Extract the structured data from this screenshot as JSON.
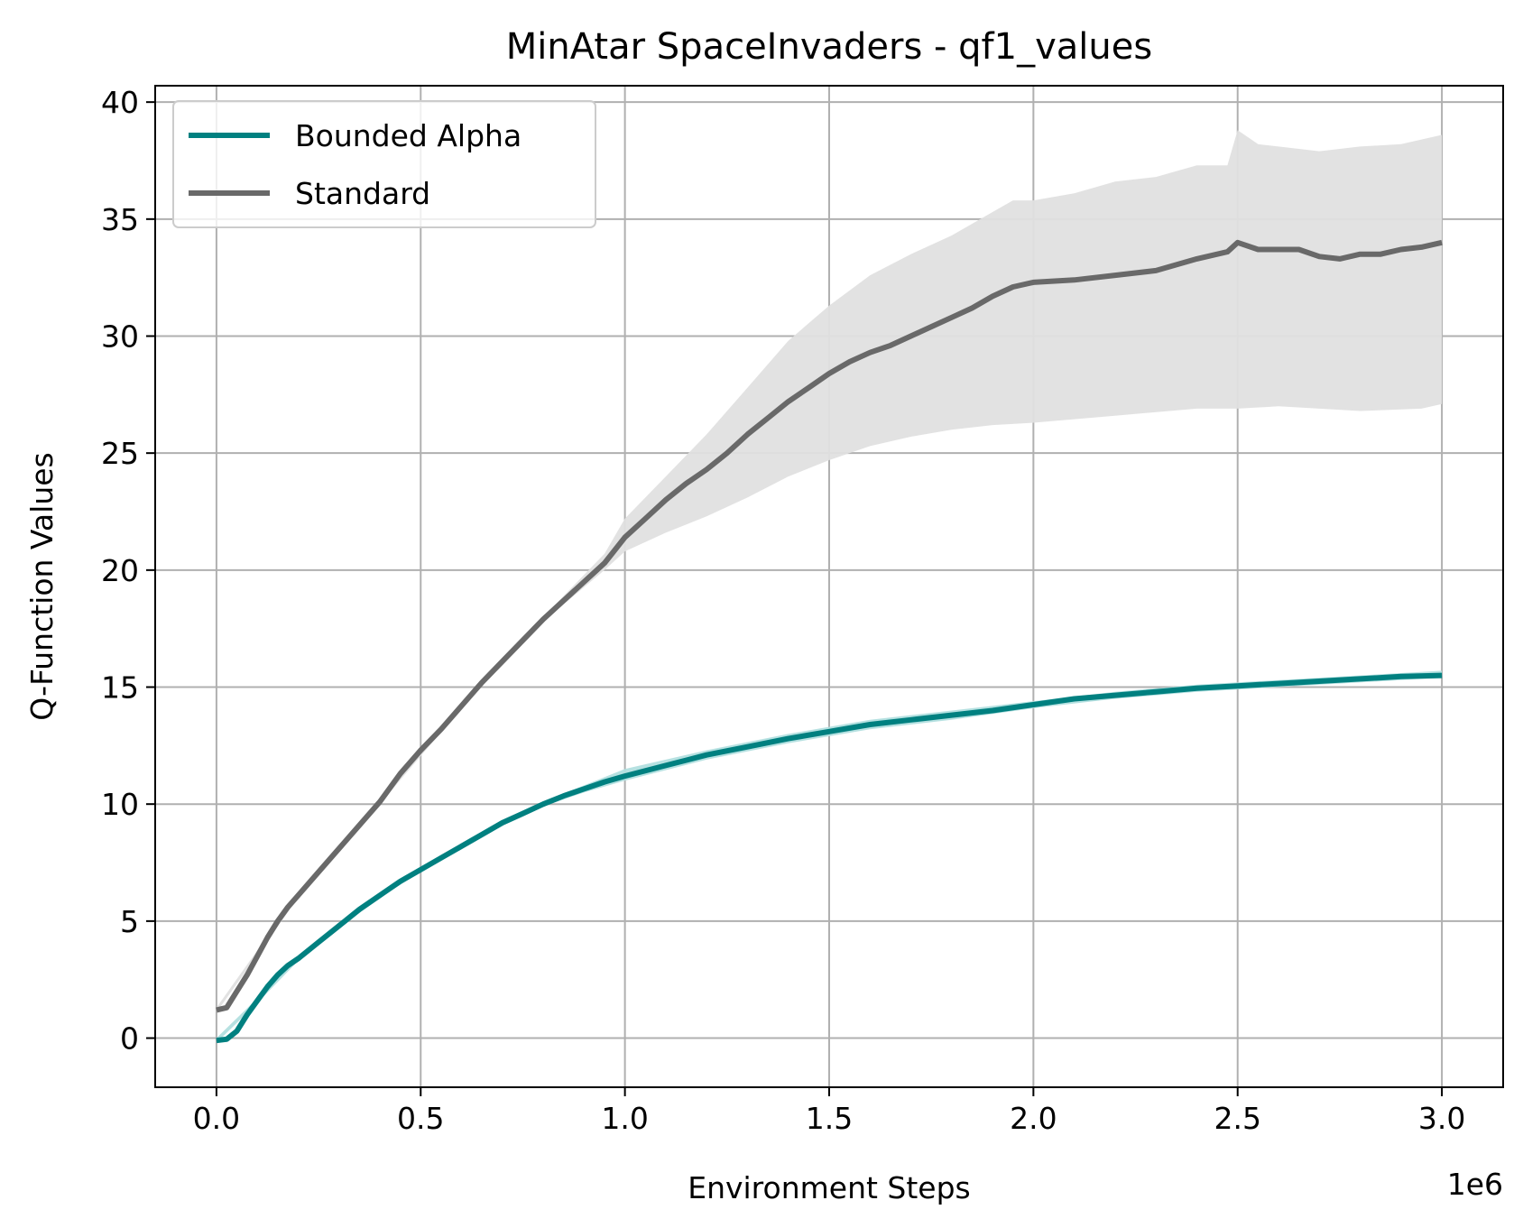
{
  "chart_data": {
    "type": "line",
    "title": "MinAtar SpaceInvaders - qf1_values",
    "xlabel": "Environment Steps",
    "ylabel": "Q-Function Values",
    "x_offset_label": "1e6",
    "xlim": [
      -150000,
      3150000
    ],
    "ylim": [
      -2.1,
      40.7
    ],
    "xticks": [
      0,
      500000,
      1000000,
      1500000,
      2000000,
      2500000,
      3000000
    ],
    "xtick_labels": [
      "0.0",
      "0.5",
      "1.0",
      "1.5",
      "2.0",
      "2.5",
      "3.0"
    ],
    "yticks": [
      0,
      5,
      10,
      15,
      20,
      25,
      30,
      35,
      40
    ],
    "ytick_labels": [
      "0",
      "5",
      "10",
      "15",
      "20",
      "25",
      "30",
      "35",
      "40"
    ],
    "grid": true,
    "legend_position": "top-left",
    "series": [
      {
        "name": "Bounded Alpha",
        "color": "#008080",
        "band_color": "#b2dfdf",
        "points": [
          [
            0,
            -0.1
          ],
          [
            25000,
            -0.05
          ],
          [
            50000,
            0.3
          ],
          [
            75000,
            1.0
          ],
          [
            100000,
            1.6
          ],
          [
            125000,
            2.2
          ],
          [
            150000,
            2.7
          ],
          [
            175000,
            3.1
          ],
          [
            200000,
            3.4
          ],
          [
            250000,
            4.1
          ],
          [
            300000,
            4.8
          ],
          [
            350000,
            5.5
          ],
          [
            400000,
            6.1
          ],
          [
            450000,
            6.7
          ],
          [
            500000,
            7.2
          ],
          [
            550000,
            7.7
          ],
          [
            600000,
            8.2
          ],
          [
            650000,
            8.7
          ],
          [
            700000,
            9.2
          ],
          [
            750000,
            9.6
          ],
          [
            800000,
            10.0
          ],
          [
            850000,
            10.35
          ],
          [
            900000,
            10.65
          ],
          [
            950000,
            10.95
          ],
          [
            1000000,
            11.2
          ],
          [
            1100000,
            11.65
          ],
          [
            1200000,
            12.1
          ],
          [
            1300000,
            12.45
          ],
          [
            1400000,
            12.8
          ],
          [
            1500000,
            13.1
          ],
          [
            1600000,
            13.4
          ],
          [
            1700000,
            13.6
          ],
          [
            1800000,
            13.8
          ],
          [
            1900000,
            14.0
          ],
          [
            2000000,
            14.25
          ],
          [
            2100000,
            14.5
          ],
          [
            2200000,
            14.65
          ],
          [
            2300000,
            14.8
          ],
          [
            2400000,
            14.95
          ],
          [
            2500000,
            15.05
          ],
          [
            2600000,
            15.15
          ],
          [
            2700000,
            15.25
          ],
          [
            2800000,
            15.35
          ],
          [
            2900000,
            15.45
          ],
          [
            3000000,
            15.5
          ]
        ],
        "band_lower": [
          [
            0,
            -0.2
          ],
          [
            100000,
            1.5
          ],
          [
            200000,
            3.3
          ],
          [
            300000,
            4.7
          ],
          [
            400000,
            6.0
          ],
          [
            500000,
            7.1
          ],
          [
            600000,
            8.1
          ],
          [
            700000,
            9.1
          ],
          [
            800000,
            9.9
          ],
          [
            900000,
            10.5
          ],
          [
            1000000,
            11.0
          ],
          [
            1200000,
            11.9
          ],
          [
            1400000,
            12.6
          ],
          [
            1600000,
            13.2
          ],
          [
            1800000,
            13.6
          ],
          [
            2000000,
            14.1
          ],
          [
            2200000,
            14.5
          ],
          [
            2400000,
            14.8
          ],
          [
            2600000,
            15.0
          ],
          [
            2800000,
            15.2
          ],
          [
            3000000,
            15.4
          ]
        ],
        "band_upper": [
          [
            0,
            0.0
          ],
          [
            100000,
            1.7
          ],
          [
            200000,
            3.5
          ],
          [
            300000,
            4.9
          ],
          [
            400000,
            6.2
          ],
          [
            500000,
            7.3
          ],
          [
            600000,
            8.3
          ],
          [
            700000,
            9.3
          ],
          [
            800000,
            10.1
          ],
          [
            900000,
            10.8
          ],
          [
            1000000,
            11.5
          ],
          [
            1200000,
            12.3
          ],
          [
            1400000,
            13.0
          ],
          [
            1600000,
            13.6
          ],
          [
            1800000,
            14.0
          ],
          [
            2000000,
            14.4
          ],
          [
            2200000,
            14.8
          ],
          [
            2400000,
            15.1
          ],
          [
            2600000,
            15.3
          ],
          [
            2800000,
            15.5
          ],
          [
            3000000,
            15.7
          ]
        ]
      },
      {
        "name": "Standard",
        "color": "#696969",
        "band_color": "#e0e0e0",
        "points": [
          [
            0,
            1.2
          ],
          [
            25000,
            1.3
          ],
          [
            50000,
            2.0
          ],
          [
            75000,
            2.7
          ],
          [
            100000,
            3.5
          ],
          [
            125000,
            4.3
          ],
          [
            150000,
            5.0
          ],
          [
            175000,
            5.6
          ],
          [
            200000,
            6.1
          ],
          [
            250000,
            7.1
          ],
          [
            300000,
            8.1
          ],
          [
            350000,
            9.1
          ],
          [
            400000,
            10.1
          ],
          [
            450000,
            11.3
          ],
          [
            500000,
            12.3
          ],
          [
            550000,
            13.2
          ],
          [
            600000,
            14.2
          ],
          [
            650000,
            15.2
          ],
          [
            700000,
            16.1
          ],
          [
            750000,
            17.0
          ],
          [
            800000,
            17.9
          ],
          [
            850000,
            18.7
          ],
          [
            900000,
            19.5
          ],
          [
            950000,
            20.3
          ],
          [
            1000000,
            21.4
          ],
          [
            1050000,
            22.2
          ],
          [
            1100000,
            23.0
          ],
          [
            1150000,
            23.7
          ],
          [
            1200000,
            24.3
          ],
          [
            1250000,
            25.0
          ],
          [
            1300000,
            25.8
          ],
          [
            1350000,
            26.5
          ],
          [
            1400000,
            27.2
          ],
          [
            1450000,
            27.8
          ],
          [
            1500000,
            28.4
          ],
          [
            1550000,
            28.9
          ],
          [
            1600000,
            29.3
          ],
          [
            1650000,
            29.6
          ],
          [
            1700000,
            30.0
          ],
          [
            1750000,
            30.4
          ],
          [
            1800000,
            30.8
          ],
          [
            1850000,
            31.2
          ],
          [
            1900000,
            31.7
          ],
          [
            1950000,
            32.1
          ],
          [
            2000000,
            32.3
          ],
          [
            2100000,
            32.4
          ],
          [
            2200000,
            32.6
          ],
          [
            2300000,
            32.8
          ],
          [
            2400000,
            33.3
          ],
          [
            2475000,
            33.6
          ],
          [
            2500000,
            34.0
          ],
          [
            2550000,
            33.7
          ],
          [
            2600000,
            33.7
          ],
          [
            2650000,
            33.7
          ],
          [
            2700000,
            33.4
          ],
          [
            2750000,
            33.3
          ],
          [
            2800000,
            33.5
          ],
          [
            2850000,
            33.5
          ],
          [
            2900000,
            33.7
          ],
          [
            2950000,
            33.8
          ],
          [
            3000000,
            34.0
          ]
        ],
        "band_lower": [
          [
            0,
            1.1
          ],
          [
            200000,
            6.0
          ],
          [
            400000,
            10.0
          ],
          [
            600000,
            14.1
          ],
          [
            800000,
            17.8
          ],
          [
            950000,
            20.0
          ],
          [
            1000000,
            20.8
          ],
          [
            1100000,
            21.6
          ],
          [
            1200000,
            22.3
          ],
          [
            1300000,
            23.1
          ],
          [
            1400000,
            24.0
          ],
          [
            1500000,
            24.7
          ],
          [
            1600000,
            25.3
          ],
          [
            1700000,
            25.7
          ],
          [
            1800000,
            26.0
          ],
          [
            1900000,
            26.2
          ],
          [
            2000000,
            26.3
          ],
          [
            2200000,
            26.6
          ],
          [
            2400000,
            26.9
          ],
          [
            2500000,
            26.9
          ],
          [
            2600000,
            27.0
          ],
          [
            2800000,
            26.8
          ],
          [
            2950000,
            26.9
          ],
          [
            3000000,
            27.1
          ]
        ],
        "band_upper": [
          [
            0,
            1.3
          ],
          [
            200000,
            6.2
          ],
          [
            400000,
            10.2
          ],
          [
            600000,
            14.3
          ],
          [
            800000,
            18.0
          ],
          [
            950000,
            20.7
          ],
          [
            1000000,
            22.2
          ],
          [
            1100000,
            24.0
          ],
          [
            1200000,
            25.8
          ],
          [
            1300000,
            27.8
          ],
          [
            1400000,
            29.8
          ],
          [
            1500000,
            31.3
          ],
          [
            1600000,
            32.6
          ],
          [
            1700000,
            33.5
          ],
          [
            1800000,
            34.3
          ],
          [
            1900000,
            35.3
          ],
          [
            1950000,
            35.8
          ],
          [
            2000000,
            35.8
          ],
          [
            2100000,
            36.1
          ],
          [
            2200000,
            36.6
          ],
          [
            2300000,
            36.8
          ],
          [
            2400000,
            37.3
          ],
          [
            2475000,
            37.3
          ],
          [
            2500000,
            38.8
          ],
          [
            2550000,
            38.2
          ],
          [
            2600000,
            38.1
          ],
          [
            2700000,
            37.9
          ],
          [
            2800000,
            38.1
          ],
          [
            2900000,
            38.2
          ],
          [
            3000000,
            38.6
          ]
        ]
      }
    ]
  }
}
